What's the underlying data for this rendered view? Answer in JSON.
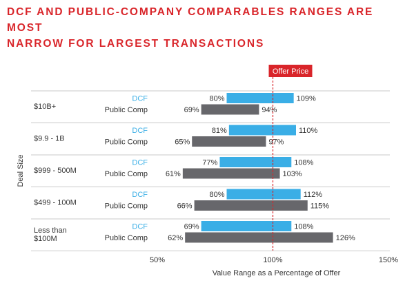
{
  "title_line1": "DCF AND PUBLIC-COMPANY COMPARABLES RANGES ARE MOST",
  "title_line2": "NARROW FOR LARGEST TRANSACTIONS",
  "chart_data": {
    "type": "bar",
    "subtype": "floating-range",
    "xlabel": "Value Range as a Percentage of Offer",
    "ylabel": "Deal Size",
    "xlim": [
      50,
      150
    ],
    "x_ticks": [
      "50%",
      "100%",
      "150%"
    ],
    "x_tick_values": [
      50,
      100,
      150
    ],
    "reference_line": {
      "value": 100,
      "label": "Offer Price",
      "color": "#d9252a",
      "style": "dashed"
    },
    "series": [
      {
        "name": "DCF",
        "color": "#3aaee6"
      },
      {
        "name": "Public Comp",
        "color": "#67676b"
      }
    ],
    "groups": [
      {
        "label_lines": [
          "$10B+"
        ],
        "rows": [
          {
            "series": "DCF",
            "low": 80,
            "high": 109
          },
          {
            "series": "Public Comp",
            "low": 69,
            "high": 94
          }
        ]
      },
      {
        "label_lines": [
          "$9.9 - 1B"
        ],
        "rows": [
          {
            "series": "DCF",
            "low": 81,
            "high": 110
          },
          {
            "series": "Public Comp",
            "low": 65,
            "high": 97
          }
        ]
      },
      {
        "label_lines": [
          "$999 - 500M"
        ],
        "rows": [
          {
            "series": "DCF",
            "low": 77,
            "high": 108
          },
          {
            "series": "Public Comp",
            "low": 61,
            "high": 103
          }
        ]
      },
      {
        "label_lines": [
          "$499 - 100M"
        ],
        "rows": [
          {
            "series": "DCF",
            "low": 80,
            "high": 112
          },
          {
            "series": "Public Comp",
            "low": 66,
            "high": 115
          }
        ]
      },
      {
        "label_lines": [
          "Less than",
          "$100M"
        ],
        "rows": [
          {
            "series": "DCF",
            "low": 69,
            "high": 108
          },
          {
            "series": "Public Comp",
            "low": 62,
            "high": 126
          }
        ]
      }
    ]
  }
}
